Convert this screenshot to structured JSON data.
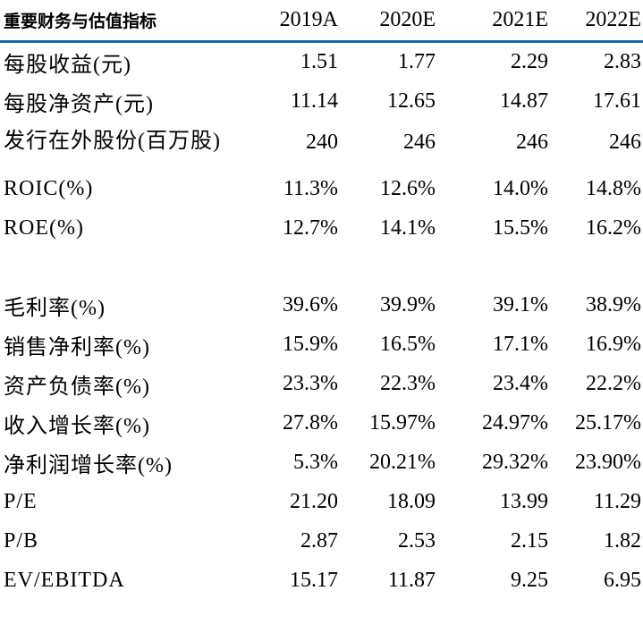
{
  "table": {
    "headers": [
      "重要财务与估值指标",
      "2019A",
      "2020E",
      "2021E",
      "2022E"
    ],
    "rows": [
      {
        "label": "每股收益(元)",
        "values": [
          "1.51",
          "1.77",
          "2.29",
          "2.83"
        ]
      },
      {
        "label": "每股净资产(元)",
        "values": [
          "11.14",
          "12.65",
          "14.87",
          "17.61"
        ]
      },
      {
        "label": "发行在外股份(百万股)",
        "values": [
          "240",
          "246",
          "246",
          "246"
        ]
      },
      {
        "label": "ROIC(%)",
        "values": [
          "11.3%",
          "12.6%",
          "14.0%",
          "14.8%"
        ]
      },
      {
        "label": "ROE(%)",
        "values": [
          "12.7%",
          "14.1%",
          "15.5%",
          "16.2%"
        ]
      },
      {
        "label": "毛利率(%)",
        "values": [
          "39.6%",
          "39.9%",
          "39.1%",
          "38.9%"
        ]
      },
      {
        "label": "销售净利率(%)",
        "values": [
          "15.9%",
          "16.5%",
          "17.1%",
          "16.9%"
        ]
      },
      {
        "label": "资产负债率(%)",
        "values": [
          "23.3%",
          "22.3%",
          "23.4%",
          "22.2%"
        ]
      },
      {
        "label": "收入增长率(%)",
        "values": [
          "27.8%",
          "15.97%",
          "24.97%",
          "25.17%"
        ]
      },
      {
        "label": "净利润增长率(%)",
        "values": [
          "5.3%",
          "20.21%",
          "29.32%",
          "23.90%"
        ]
      },
      {
        "label": "P/E",
        "values": [
          "21.20",
          "18.09",
          "13.99",
          "11.29"
        ]
      },
      {
        "label": "P/B",
        "values": [
          "2.87",
          "2.53",
          "2.15",
          "1.82"
        ]
      },
      {
        "label": "EV/EBITDA",
        "values": [
          "15.17",
          "11.87",
          "9.25",
          "6.95"
        ]
      }
    ]
  },
  "colors": {
    "header_rule": "#1f66a8",
    "text": "#000000",
    "background": "#ffffff"
  }
}
